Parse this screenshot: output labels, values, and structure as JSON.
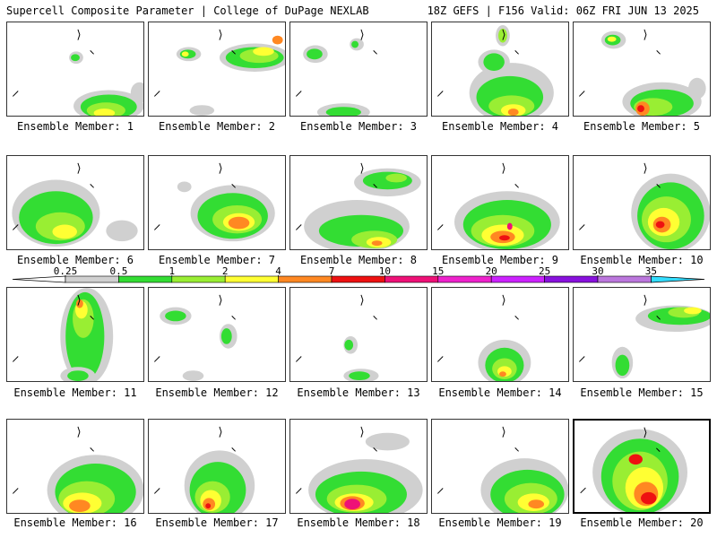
{
  "header": {
    "left": "Supercell Composite Parameter | College of DuPage NEXLAB",
    "right": "18Z GEFS | F156 Valid: 06Z FRI JUN 13 2025"
  },
  "colorbar": {
    "ticks": [
      "0.25",
      "0.5",
      "1",
      "2",
      "4",
      "7",
      "10",
      "15",
      "20",
      "25",
      "30",
      "35"
    ],
    "colors": [
      "#d0d0d0",
      "#33dd33",
      "#99ee33",
      "#ffff33",
      "#ff8822",
      "#ee1111",
      "#ee1177",
      "#ee22cc",
      "#cc22ff",
      "#8811dd",
      "#bb77dd",
      "#33ddff"
    ],
    "below_color": "#ffffff",
    "above_color": "#33ddff"
  },
  "members": [
    {
      "label": "Ensemble Member: 1",
      "selected": false
    },
    {
      "label": "Ensemble Member: 2",
      "selected": false
    },
    {
      "label": "Ensemble Member: 3",
      "selected": false
    },
    {
      "label": "Ensemble Member: 4",
      "selected": false
    },
    {
      "label": "Ensemble Member: 5",
      "selected": false
    },
    {
      "label": "Ensemble Member: 6",
      "selected": false
    },
    {
      "label": "Ensemble Member: 7",
      "selected": false
    },
    {
      "label": "Ensemble Member: 8",
      "selected": false
    },
    {
      "label": "Ensemble Member: 9",
      "selected": false
    },
    {
      "label": "Ensemble Member: 10",
      "selected": false
    },
    {
      "label": "Ensemble Member: 11",
      "selected": false
    },
    {
      "label": "Ensemble Member: 12",
      "selected": false
    },
    {
      "label": "Ensemble Member: 13",
      "selected": false
    },
    {
      "label": "Ensemble Member: 14",
      "selected": false
    },
    {
      "label": "Ensemble Member: 15",
      "selected": false
    },
    {
      "label": "Ensemble Member: 16",
      "selected": false
    },
    {
      "label": "Ensemble Member: 17",
      "selected": false
    },
    {
      "label": "Ensemble Member: 18",
      "selected": false
    },
    {
      "label": "Ensemble Member: 19",
      "selected": false
    },
    {
      "label": "Ensemble Member: 20",
      "selected": true
    }
  ]
}
